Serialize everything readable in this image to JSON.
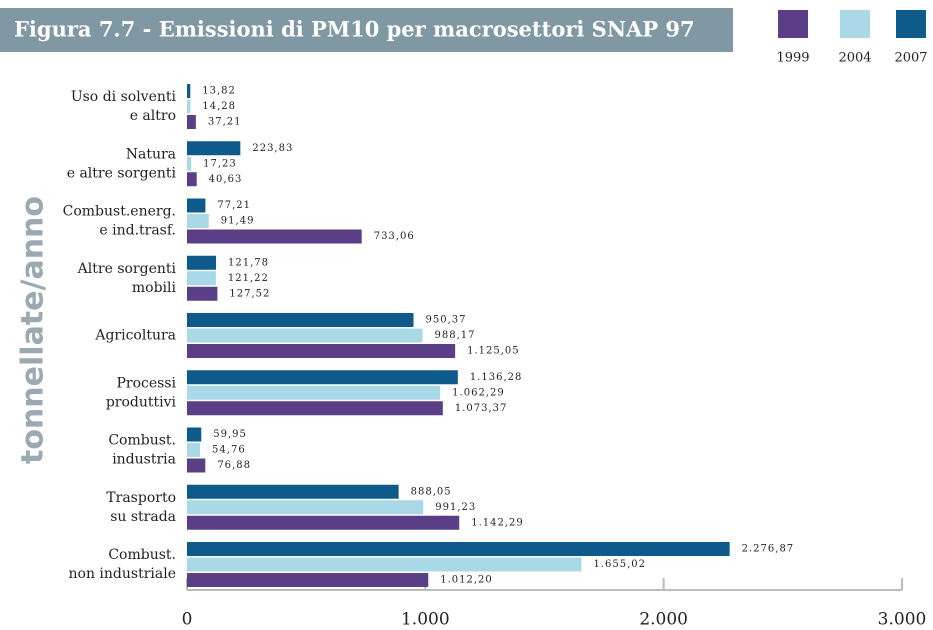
{
  "chart_data": {
    "type": "bar",
    "orientation": "horizontal",
    "title": "Figura 7.7 - Emissioni di PM10 per macrosettori SNAP 97",
    "y_axis_label": "tonnellate/anno",
    "categories": [
      [
        "Uso di solventi",
        "e altro"
      ],
      [
        "Natura",
        "e altre sorgenti"
      ],
      [
        "Combust.energ.",
        "e ind.trasf."
      ],
      [
        "Altre sorgenti",
        "mobili"
      ],
      [
        "Agricoltura"
      ],
      [
        "Processi",
        "produttivi"
      ],
      [
        "Combust.",
        "industria"
      ],
      [
        "Trasporto",
        "su strada"
      ],
      [
        "Combust.",
        "non industriale"
      ]
    ],
    "series": [
      {
        "name": "1999",
        "color": "#5b3f86",
        "values": [
          37.21,
          40.63,
          733.06,
          127.52,
          1125.05,
          1073.37,
          76.88,
          1142.29,
          1012.2
        ],
        "value_labels": [
          "37,21",
          "40,63",
          "733,06",
          "127,52",
          "1.125,05",
          "1.073,37",
          "76,88",
          "1.142,29",
          "1.012,20"
        ]
      },
      {
        "name": "2004",
        "color": "#a9d8e6",
        "values": [
          14.28,
          17.23,
          91.49,
          121.22,
          988.17,
          1062.29,
          54.76,
          991.23,
          1655.02
        ],
        "value_labels": [
          "14,28",
          "17,23",
          "91,49",
          "121,22",
          "988,17",
          "1.062,29",
          "54,76",
          "991,23",
          "1.655,02"
        ]
      },
      {
        "name": "2007",
        "color": "#0e5a8a",
        "values": [
          13.82,
          223.83,
          77.21,
          121.78,
          950.37,
          1136.28,
          59.95,
          888.05,
          2276.87
        ],
        "value_labels": [
          "13,82",
          "223,83",
          "77,21",
          "121,78",
          "950,37",
          "1.136,28",
          "59,95",
          "888,05",
          "2.276,87"
        ]
      }
    ],
    "xlim": [
      0,
      3000
    ],
    "xticks": [
      0,
      {
        "value": 1000,
        "label": "1.000"
      },
      {
        "value": 2000,
        "label": "2.000"
      },
      {
        "value": 3000,
        "label": "3.000"
      }
    ],
    "legend": "top-right"
  }
}
